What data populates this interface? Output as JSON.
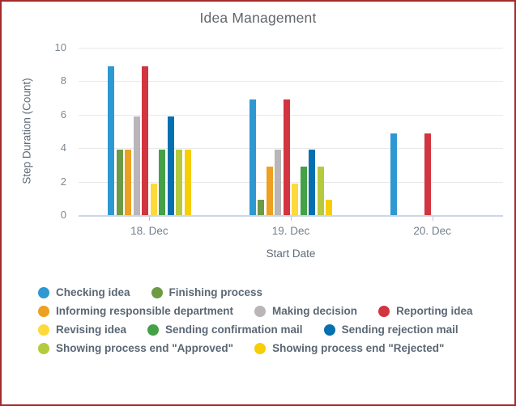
{
  "window": {
    "border_color": "#a52a2a",
    "background": "#ffffff"
  },
  "chart_data": {
    "type": "bar",
    "title": "Idea Management",
    "xlabel": "Start Date",
    "ylabel": "Step Duration (Count)",
    "ylim": [
      0,
      10
    ],
    "yticks": [
      0,
      2,
      4,
      6,
      8,
      10
    ],
    "grid": "horizontal",
    "legend_position": "bottom",
    "categories": [
      "18. Dec",
      "19. Dec",
      "20. Dec"
    ],
    "series": [
      {
        "name": "Checking idea",
        "color": "#2e98d2",
        "values": [
          8.9,
          6.9,
          4.9
        ]
      },
      {
        "name": "Finishing process",
        "color": "#6d9b45",
        "values": [
          3.9,
          0.9,
          0
        ]
      },
      {
        "name": "Informing responsible department",
        "color": "#eca120",
        "values": [
          3.9,
          2.9,
          0
        ]
      },
      {
        "name": "Making decision",
        "color": "#b9b5b8",
        "values": [
          5.9,
          3.9,
          0
        ]
      },
      {
        "name": "Reporting idea",
        "color": "#d23440",
        "values": [
          8.9,
          6.9,
          4.9
        ]
      },
      {
        "name": "Revising idea",
        "color": "#fdd93c",
        "values": [
          1.9,
          1.9,
          0
        ]
      },
      {
        "name": "Sending confirmation mail",
        "color": "#44a147",
        "values": [
          3.9,
          2.9,
          0
        ]
      },
      {
        "name": "Sending rejection mail",
        "color": "#0570af",
        "values": [
          5.9,
          3.9,
          0
        ]
      },
      {
        "name": "Showing process end \"Approved\"",
        "color": "#b6ca3e",
        "values": [
          3.9,
          2.9,
          0
        ]
      },
      {
        "name": "Showing process end \"Rejected\"",
        "color": "#f6ce03",
        "values": [
          3.9,
          0.9,
          0
        ]
      }
    ]
  }
}
